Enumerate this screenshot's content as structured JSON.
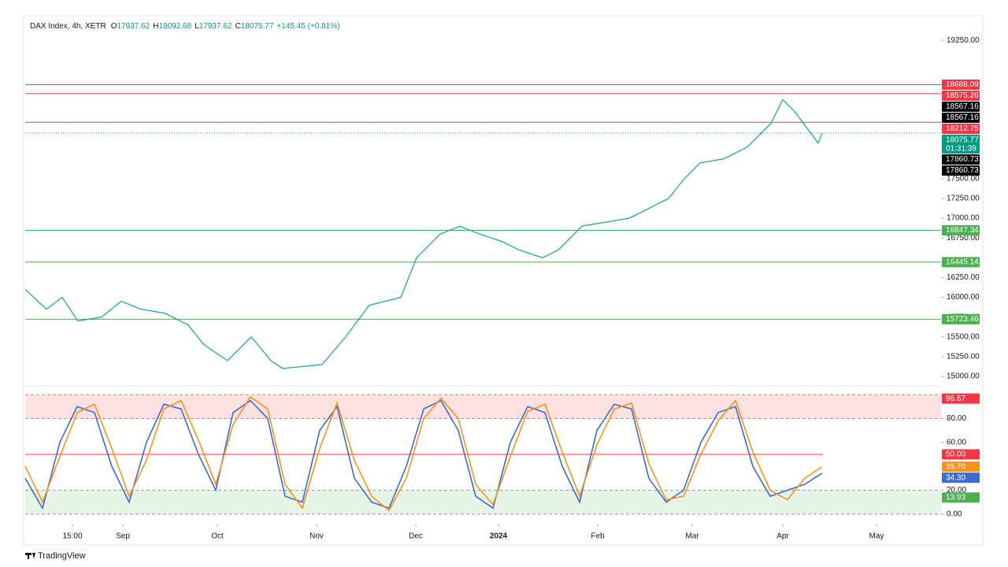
{
  "header": {
    "title": "DAX Index, 4h, XETR",
    "ohlc": [
      {
        "label": "O",
        "value": 17937.62
      },
      {
        "label": "H",
        "value": 18092.68
      },
      {
        "label": "L",
        "value": 17937.62
      },
      {
        "label": "C",
        "value": 18075.77
      }
    ],
    "change": "+145.45 (+0.81%)"
  },
  "footer": "TradingView",
  "chart_data": [
    {
      "type": "line",
      "xlim": [
        0,
        1163
      ],
      "xticks": [
        {
          "value": 60,
          "label": "15:00"
        },
        {
          "value": 124,
          "label": "Sep"
        },
        {
          "value": 244,
          "label": "Oct"
        },
        {
          "value": 370,
          "label": "Nov"
        },
        {
          "value": 496,
          "label": "Dec"
        },
        {
          "value": 601,
          "label": "2024"
        },
        {
          "value": 727,
          "label": "Feb"
        },
        {
          "value": 847,
          "label": "Mar"
        },
        {
          "value": 962,
          "label": "Apr"
        },
        {
          "value": 1081,
          "label": "May"
        }
      ],
      "ylim": [
        14950,
        19540
      ],
      "yticks": [
        {
          "value": 15000,
          "label": "15000.00"
        },
        {
          "value": 15250,
          "label": "15250.00"
        },
        {
          "value": 15500,
          "label": "15500.00"
        },
        {
          "value": 15750,
          "label": "15750.00"
        },
        {
          "value": 16000,
          "label": "16000.00"
        },
        {
          "value": 16250,
          "label": "16250.00"
        },
        {
          "value": 16750,
          "label": "16750.00"
        },
        {
          "value": 17000,
          "label": "17000.00"
        },
        {
          "value": 17250,
          "label": "17250.00"
        },
        {
          "value": 17500,
          "label": "17500.00"
        },
        {
          "value": 19250,
          "label": "19250.00"
        }
      ],
      "series": [
        {
          "color": "#26a69a",
          "x": [
            0,
            27,
            47,
            67,
            97,
            122,
            147,
            177,
            207,
            227,
            257,
            287,
            312,
            327,
            377,
            407,
            437,
            477,
            497,
            527,
            552,
            577,
            607,
            627,
            657,
            677,
            707,
            737,
            767,
            797,
            817,
            837,
            857,
            887,
            917,
            947,
            962,
            977,
            992,
            1007,
            1012
          ],
          "values": [
            16100,
            15850,
            16000,
            15700,
            15750,
            15950,
            15850,
            15800,
            15650,
            15400,
            15200,
            15500,
            15200,
            15100,
            15150,
            15500,
            15900,
            16000,
            16500,
            16800,
            16900,
            16800,
            16700,
            16600,
            16500,
            16600,
            16900,
            16950,
            17000,
            17150,
            17250,
            17500,
            17700,
            17750,
            17900,
            18200,
            18500,
            18350,
            18150,
            17950,
            18075.77
          ]
        }
      ],
      "price_labels": [
        {
          "value": 18688.09,
          "color": "#f23645",
          "line": true
        },
        {
          "value": 18575.26,
          "color": "#f23645",
          "line": true
        },
        {
          "value": 18567.16,
          "color": "#000000",
          "line": false
        },
        {
          "value": 18567.16,
          "color": "#000000",
          "line": false
        },
        {
          "value": 18212.75,
          "color": "#f23645",
          "line": true
        },
        {
          "value": 18075.77,
          "color": "#089981",
          "line": false,
          "countdown": "01:31:39"
        },
        {
          "value": 17860.73,
          "color": "#000000",
          "line": false
        },
        {
          "value": 17860.73,
          "color": "#000000",
          "line": false
        },
        {
          "value": 16847.34,
          "color": "#4caf50",
          "line": true
        },
        {
          "value": 16445.14,
          "color": "#4caf50",
          "line": true
        },
        {
          "value": 15723.46,
          "color": "#4caf50",
          "line": true
        }
      ]
    },
    {
      "type": "line",
      "xlim": [
        0,
        1163
      ],
      "ylim": [
        -4.7,
        102.7
      ],
      "yticks": [
        {
          "value": 0,
          "label": "0.00"
        },
        {
          "value": 20,
          "label": "20.00"
        },
        {
          "value": 60,
          "label": "60.00"
        },
        {
          "value": 80,
          "label": "80.00"
        }
      ],
      "bands": [
        {
          "from": 80,
          "to": 100,
          "color": "#fde0e0"
        },
        {
          "from": 0,
          "to": 20,
          "color": "#e6f4e6"
        }
      ],
      "series": [
        {
          "color": "#3d6bd1",
          "x": [
            0,
            22,
            44,
            66,
            88,
            110,
            132,
            154,
            176,
            198,
            220,
            242,
            264,
            286,
            308,
            330,
            352,
            374,
            396,
            418,
            440,
            462,
            484,
            506,
            528,
            550,
            572,
            594,
            616,
            638,
            660,
            682,
            704,
            726,
            748,
            770,
            792,
            814,
            836,
            858,
            880,
            902,
            924,
            946,
            968,
            990,
            1012
          ],
          "values": [
            30,
            5,
            60,
            90,
            85,
            40,
            10,
            60,
            92,
            88,
            50,
            20,
            85,
            95,
            80,
            15,
            10,
            70,
            90,
            30,
            10,
            5,
            40,
            88,
            95,
            70,
            15,
            5,
            60,
            90,
            85,
            40,
            10,
            70,
            92,
            88,
            30,
            10,
            20,
            60,
            85,
            90,
            40,
            15,
            20,
            25,
            34.3
          ]
        },
        {
          "color": "#f7931a",
          "x": [
            0,
            22,
            44,
            66,
            88,
            110,
            132,
            154,
            176,
            198,
            220,
            242,
            264,
            286,
            308,
            330,
            352,
            374,
            396,
            418,
            440,
            462,
            484,
            506,
            528,
            550,
            572,
            594,
            616,
            638,
            660,
            682,
            704,
            726,
            748,
            770,
            792,
            814,
            836,
            858,
            880,
            902,
            924,
            946,
            968,
            990,
            1012
          ],
          "values": [
            40,
            10,
            48,
            85,
            92,
            55,
            15,
            45,
            88,
            95,
            62,
            25,
            75,
            98,
            88,
            25,
            5,
            55,
            93,
            45,
            15,
            3,
            30,
            80,
            97,
            80,
            25,
            8,
            48,
            86,
            92,
            52,
            15,
            58,
            88,
            93,
            42,
            12,
            15,
            50,
            78,
            95,
            52,
            20,
            12,
            30,
            39.7
          ]
        }
      ],
      "price_labels": [
        {
          "value": 96.67,
          "color": "#f23645"
        },
        {
          "value": 50,
          "label": "50.00",
          "color": "#f23645"
        },
        {
          "value": 39.7,
          "label": "39.70",
          "color": "#f7931a"
        },
        {
          "value": 34.3,
          "label": "34.30",
          "color": "#3d6bd1"
        },
        {
          "value": 13.93,
          "color": "#4caf50"
        }
      ],
      "midline": {
        "value": 50,
        "color": "#f23645"
      }
    }
  ]
}
